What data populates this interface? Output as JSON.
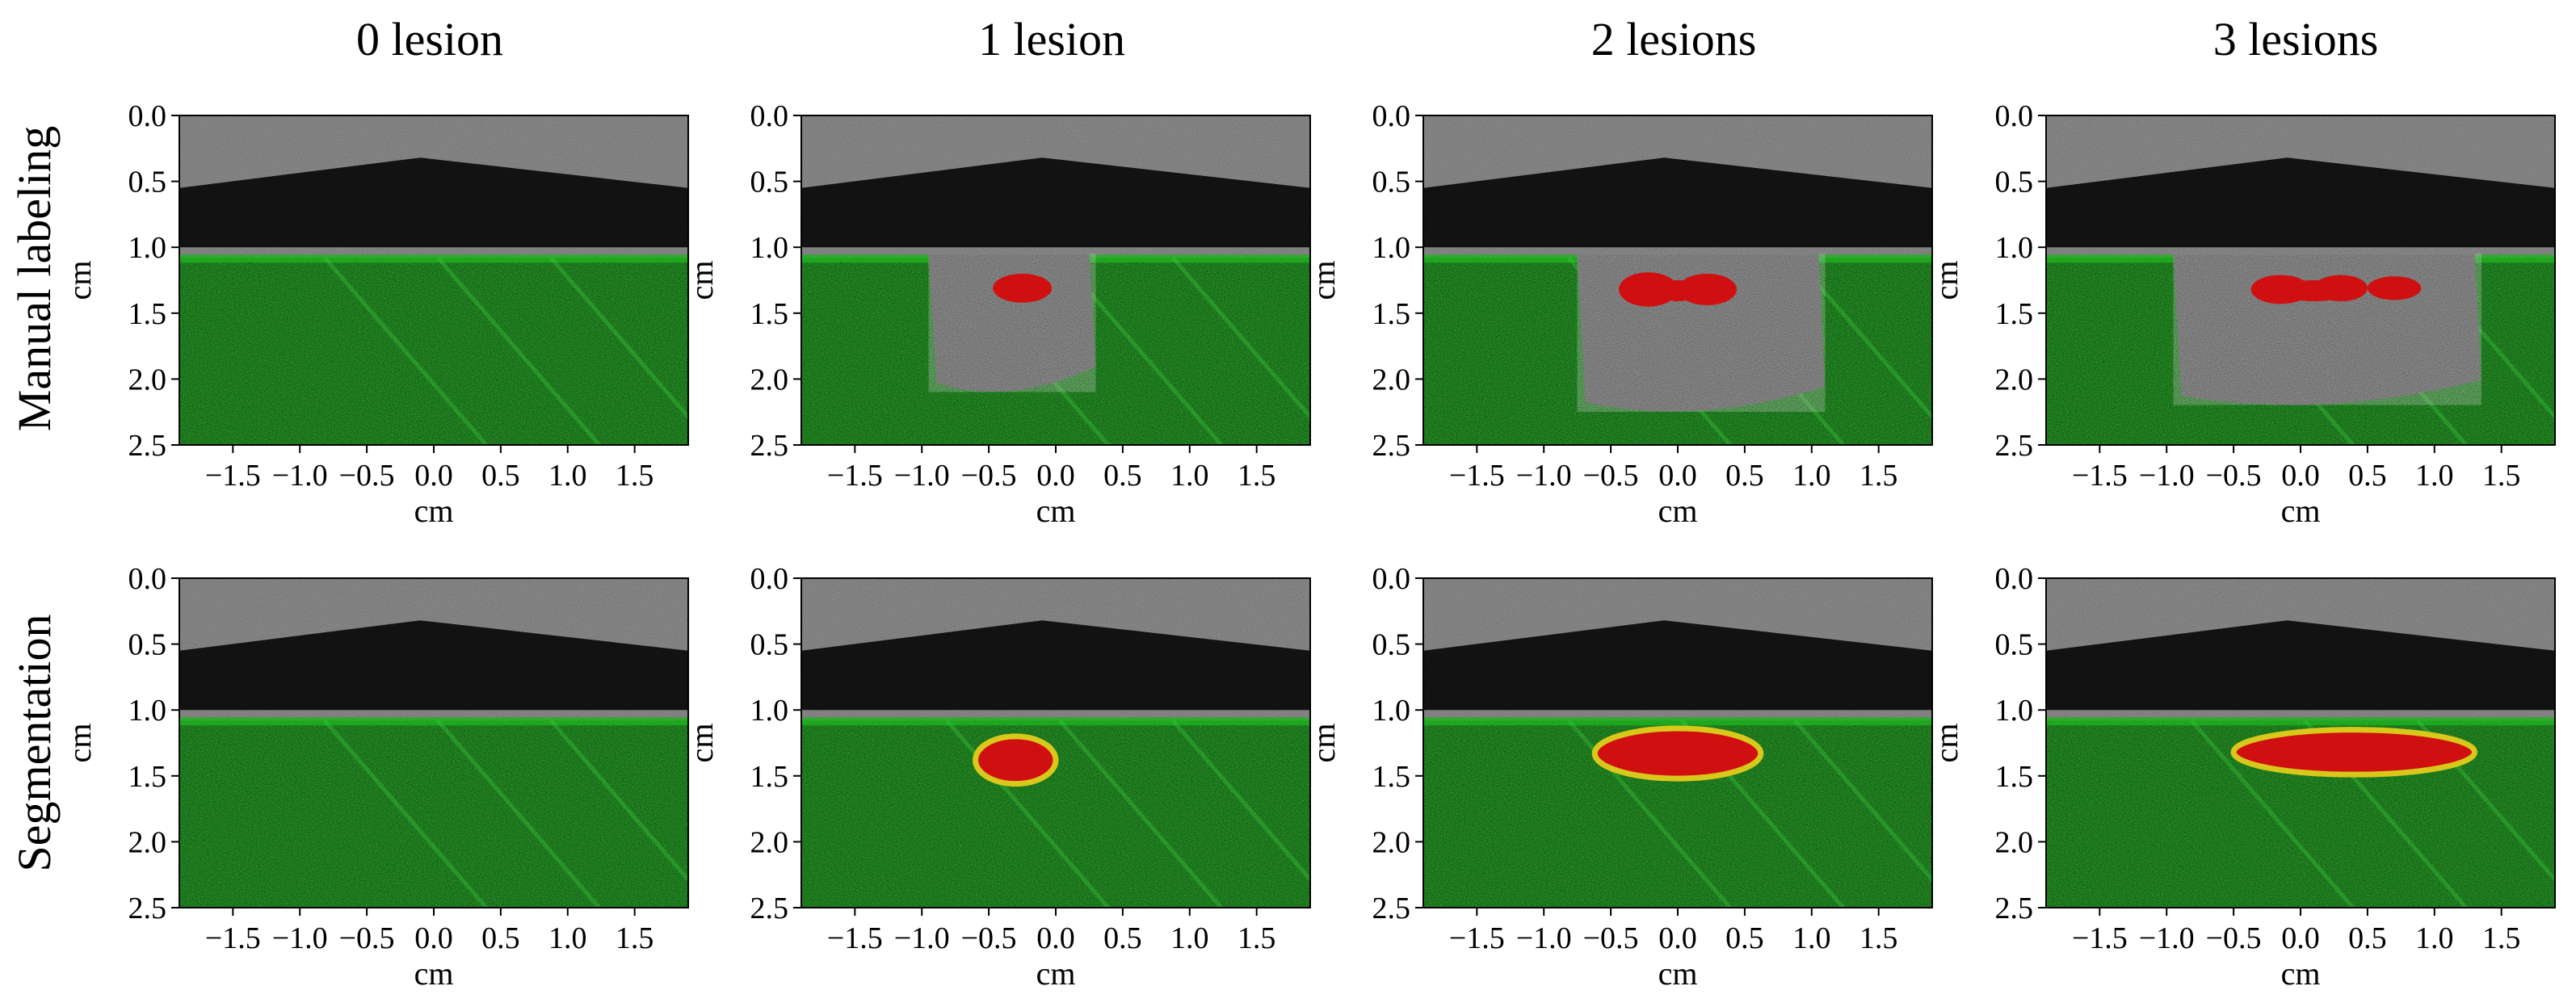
{
  "column_titles": [
    "0 lesion",
    "1 lesion",
    "2 lesions",
    "3 lesions"
  ],
  "row_labels": [
    "Manual labeling",
    "Segmentation"
  ],
  "axes": {
    "xlabel": "cm",
    "ylabel": "cm",
    "xticks": [
      "-1.5",
      "-1.0",
      "-0.5",
      "0.0",
      "0.5",
      "1.0",
      "1.5"
    ],
    "yticks": [
      "0.0",
      "0.5",
      "1.0",
      "1.5",
      "2.0",
      "2.5"
    ],
    "xlim": [
      -1.9,
      1.9
    ],
    "ylim": [
      0,
      2.5
    ]
  },
  "colors": {
    "background_mask": "#1fb31f",
    "lesion_mask": "#d01010",
    "segmentation_contour": "#d8c81c",
    "ultrasound_gray": "#8a8a8a",
    "dark_cavity": "#0a0a0a"
  }
}
